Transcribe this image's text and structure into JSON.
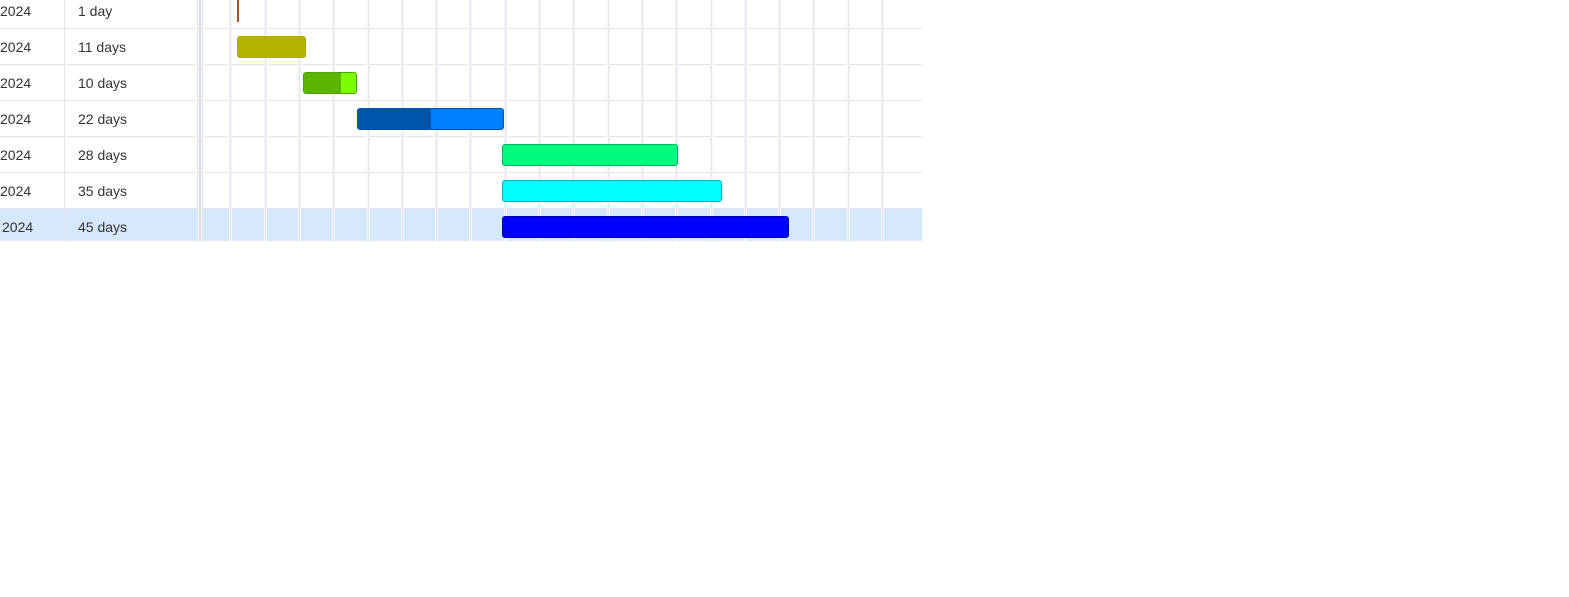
{
  "timeline": {
    "range_start_day": 0,
    "range_end_day": 144,
    "gridline_every_days": 7
  },
  "tasks": [
    {
      "date_label": "2024",
      "duration_label": "1 day",
      "start_day": 7,
      "duration_days": 1,
      "type": "milestone",
      "color": "#a0522d",
      "border": "#a0522d",
      "progress_color": "#a0522d",
      "progress": 0,
      "selected": false
    },
    {
      "date_label": "2024",
      "duration_label": "11 days",
      "start_day": 7,
      "duration_days": 14,
      "type": "task",
      "color": "#b4b400",
      "border": "#a9a900",
      "progress_color": "#b4b400",
      "progress": 0,
      "selected": false
    },
    {
      "date_label": "2024",
      "duration_label": "10 days",
      "start_day": 20.5,
      "duration_days": 11,
      "type": "task",
      "color": "#7cfc00",
      "border": "#4aa300",
      "progress_color": "#5ab400",
      "progress": 0.7,
      "selected": false
    },
    {
      "date_label": "2024",
      "duration_label": "22 days",
      "start_day": 31.5,
      "duration_days": 30,
      "type": "task",
      "color": "#0080ff",
      "border": "#0052a8",
      "progress_color": "#0055aa",
      "progress": 0.5,
      "selected": false
    },
    {
      "date_label": "2024",
      "duration_label": "28 days",
      "start_day": 61,
      "duration_days": 36,
      "type": "task",
      "color": "#00fa80",
      "border": "#00b15d",
      "progress_color": "#00fa80",
      "progress": 0,
      "selected": false
    },
    {
      "date_label": "2024",
      "duration_label": "35 days",
      "start_day": 61,
      "duration_days": 45,
      "type": "task",
      "color": "#00ffff",
      "border": "#00b6c8",
      "progress_color": "#00ffff",
      "progress": 0,
      "selected": false
    },
    {
      "date_label": "2024",
      "duration_label": "45 days",
      "start_day": 61,
      "duration_days": 58.5,
      "type": "task",
      "color": "#0000ff",
      "border": "#0000b0",
      "progress_color": "#0000ff",
      "progress": 0,
      "selected": true
    }
  ]
}
